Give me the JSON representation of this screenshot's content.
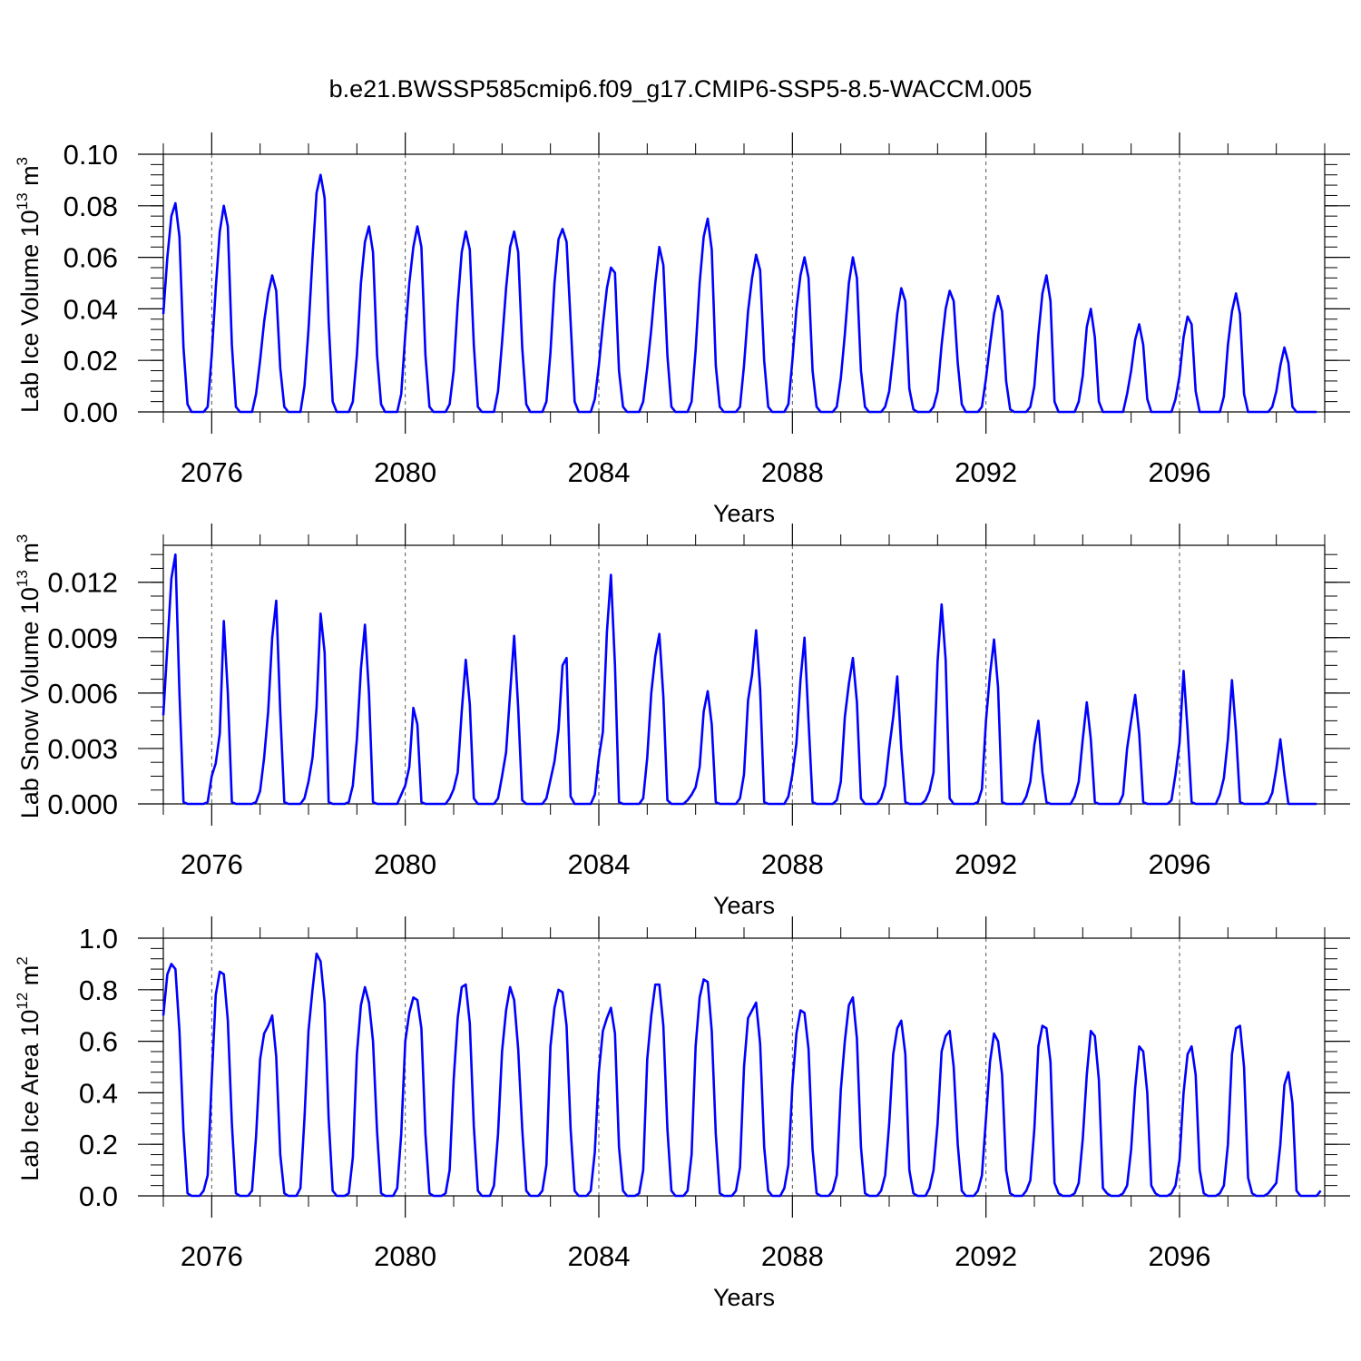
{
  "figure_title": "b.e21.BWSSP585cmip6.f09_g17.CMIP6-SSP5-8.5-WACCM.005",
  "line_color": "#0000ff",
  "chart_data": [
    {
      "type": "line",
      "title": "b.e21.BWSSP585cmip6.f09_g17.CMIP6-SSP5-8.5-WACCM.005",
      "xlabel": "Years",
      "ylabel_main": "Lab Ice Volume 10",
      "ylabel_exp": "13",
      "ylabel_unit": " m",
      "ylabel_unit_exp": "3",
      "xlim": [
        2075,
        2099
      ],
      "ylim": [
        0,
        0.1
      ],
      "yticks": [
        0.0,
        0.02,
        0.04,
        0.06,
        0.08,
        0.1
      ],
      "ytick_labels": [
        "0.00",
        "0.02",
        "0.04",
        "0.06",
        "0.08",
        "0.10"
      ],
      "xticks": [
        2076,
        2080,
        2084,
        2088,
        2092,
        2096
      ],
      "xtick_labels": [
        "2076",
        "2080",
        "2084",
        "2088",
        "2092",
        "2096"
      ],
      "grid": "dashed vertical lines at labeled years",
      "time_resolution": "monthly, starting January 2075",
      "series": [
        {
          "name": "Lab Ice Volume",
          "values": [
            0.038,
            0.06,
            0.076,
            0.081,
            0.068,
            0.025,
            0.003,
            0.0,
            0.0,
            0.0,
            0.0,
            0.002,
            0.022,
            0.048,
            0.07,
            0.08,
            0.072,
            0.026,
            0.002,
            0.0,
            0.0,
            0.0,
            0.0,
            0.007,
            0.02,
            0.035,
            0.046,
            0.053,
            0.047,
            0.017,
            0.002,
            0.0,
            0.0,
            0.0,
            0.0,
            0.01,
            0.032,
            0.06,
            0.085,
            0.092,
            0.083,
            0.035,
            0.004,
            0.0,
            0.0,
            0.0,
            0.0,
            0.004,
            0.022,
            0.05,
            0.066,
            0.072,
            0.062,
            0.022,
            0.003,
            0.0,
            0.0,
            0.0,
            0.0,
            0.007,
            0.03,
            0.05,
            0.064,
            0.072,
            0.064,
            0.022,
            0.002,
            0.0,
            0.0,
            0.0,
            0.0,
            0.003,
            0.016,
            0.042,
            0.062,
            0.07,
            0.063,
            0.026,
            0.002,
            0.0,
            0.0,
            0.0,
            0.0,
            0.008,
            0.027,
            0.048,
            0.064,
            0.07,
            0.062,
            0.025,
            0.003,
            0.0,
            0.0,
            0.0,
            0.0,
            0.004,
            0.023,
            0.05,
            0.067,
            0.071,
            0.066,
            0.035,
            0.004,
            0.0,
            0.0,
            0.0,
            0.0,
            0.005,
            0.018,
            0.034,
            0.048,
            0.056,
            0.054,
            0.016,
            0.002,
            0.0,
            0.0,
            0.0,
            0.0,
            0.004,
            0.017,
            0.032,
            0.05,
            0.064,
            0.057,
            0.022,
            0.002,
            0.0,
            0.0,
            0.0,
            0.0,
            0.004,
            0.024,
            0.05,
            0.068,
            0.075,
            0.063,
            0.018,
            0.002,
            0.0,
            0.0,
            0.0,
            0.0,
            0.002,
            0.018,
            0.039,
            0.052,
            0.061,
            0.055,
            0.02,
            0.002,
            0.0,
            0.0,
            0.0,
            0.0,
            0.003,
            0.02,
            0.04,
            0.053,
            0.06,
            0.052,
            0.016,
            0.002,
            0.0,
            0.0,
            0.0,
            0.0,
            0.002,
            0.013,
            0.03,
            0.05,
            0.06,
            0.052,
            0.016,
            0.002,
            0.0,
            0.0,
            0.0,
            0.0,
            0.002,
            0.008,
            0.022,
            0.038,
            0.048,
            0.043,
            0.009,
            0.001,
            0.0,
            0.0,
            0.0,
            0.0,
            0.002,
            0.008,
            0.026,
            0.04,
            0.047,
            0.043,
            0.019,
            0.003,
            0.0,
            0.0,
            0.0,
            0.0,
            0.002,
            0.013,
            0.026,
            0.038,
            0.045,
            0.039,
            0.012,
            0.001,
            0.0,
            0.0,
            0.0,
            0.0,
            0.002,
            0.01,
            0.03,
            0.046,
            0.053,
            0.043,
            0.004,
            0.0,
            0.0,
            0.0,
            0.0,
            0.0,
            0.004,
            0.014,
            0.033,
            0.04,
            0.029,
            0.004,
            0.0,
            0.0,
            0.0,
            0.0,
            0.0,
            0.0,
            0.007,
            0.016,
            0.028,
            0.034,
            0.026,
            0.005,
            0.0,
            0.0,
            0.0,
            0.0,
            0.0,
            0.0,
            0.005,
            0.014,
            0.029,
            0.037,
            0.034,
            0.008,
            0.0,
            0.0,
            0.0,
            0.0,
            0.0,
            0.0,
            0.006,
            0.026,
            0.039,
            0.046,
            0.038,
            0.007,
            0.0,
            0.0,
            0.0,
            0.0,
            0.0,
            0.0,
            0.002,
            0.008,
            0.018,
            0.025,
            0.019,
            0.002,
            0.0,
            0.0,
            0.0,
            0.0,
            0.0,
            0.0
          ]
        }
      ]
    },
    {
      "type": "line",
      "xlabel": "Years",
      "ylabel_main": "Lab Snow Volume 10",
      "ylabel_exp": "13",
      "ylabel_unit": " m",
      "ylabel_unit_exp": "3",
      "xlim": [
        2075,
        2099
      ],
      "ylim": [
        0,
        0.014
      ],
      "yticks": [
        0.0,
        0.003,
        0.006,
        0.009,
        0.012
      ],
      "ytick_labels": [
        "0.000",
        "0.003",
        "0.006",
        "0.009",
        "0.012"
      ],
      "xticks": [
        2076,
        2080,
        2084,
        2088,
        2092,
        2096
      ],
      "xtick_labels": [
        "2076",
        "2080",
        "2084",
        "2088",
        "2092",
        "2096"
      ],
      "grid": "dashed vertical lines at labeled years",
      "time_resolution": "monthly, starting January 2075",
      "series": [
        {
          "name": "Lab Snow Volume",
          "values": [
            0.0048,
            0.0085,
            0.0122,
            0.0135,
            0.006,
            0.0001,
            0.0,
            0.0,
            0.0,
            0.0,
            0.0,
            0.0001,
            0.0015,
            0.0022,
            0.0038,
            0.0099,
            0.006,
            0.0001,
            0.0,
            0.0,
            0.0,
            0.0,
            0.0,
            0.0001,
            0.0007,
            0.0025,
            0.005,
            0.009,
            0.011,
            0.005,
            0.0001,
            0.0,
            0.0,
            0.0,
            0.0,
            0.0003,
            0.0012,
            0.0025,
            0.0052,
            0.0103,
            0.0082,
            0.0001,
            0.0,
            0.0,
            0.0,
            0.0,
            0.0001,
            0.001,
            0.0035,
            0.0073,
            0.0097,
            0.006,
            0.0001,
            0.0,
            0.0,
            0.0,
            0.0,
            0.0,
            0.0,
            0.0005,
            0.001,
            0.002,
            0.0052,
            0.0043,
            0.0001,
            0.0,
            0.0,
            0.0,
            0.0,
            0.0,
            0.0,
            0.0003,
            0.0008,
            0.0017,
            0.005,
            0.0078,
            0.0054,
            0.0003,
            0.0,
            0.0,
            0.0,
            0.0,
            0.0,
            0.0003,
            0.0015,
            0.0028,
            0.006,
            0.0091,
            0.0052,
            0.0002,
            0.0,
            0.0,
            0.0,
            0.0,
            0.0,
            0.0003,
            0.0013,
            0.0023,
            0.004,
            0.0075,
            0.0079,
            0.0004,
            0.0,
            0.0,
            0.0,
            0.0,
            0.0,
            0.0005,
            0.0025,
            0.0039,
            0.0093,
            0.0124,
            0.0075,
            0.0001,
            0.0,
            0.0,
            0.0,
            0.0,
            0.0,
            0.0003,
            0.0025,
            0.006,
            0.008,
            0.0092,
            0.0058,
            0.0002,
            0.0,
            0.0,
            0.0,
            0.0,
            0.0002,
            0.0005,
            0.0009,
            0.002,
            0.005,
            0.0061,
            0.0043,
            0.0001,
            0.0,
            0.0,
            0.0,
            0.0,
            0.0,
            0.0003,
            0.0016,
            0.0056,
            0.007,
            0.0094,
            0.0062,
            0.0001,
            0.0,
            0.0,
            0.0,
            0.0,
            0.0,
            0.0004,
            0.0016,
            0.0033,
            0.0067,
            0.009,
            0.0045,
            0.0001,
            0.0,
            0.0,
            0.0,
            0.0,
            0.0,
            0.0002,
            0.0012,
            0.0047,
            0.0065,
            0.0079,
            0.0055,
            0.0003,
            0.0,
            0.0,
            0.0,
            0.0,
            0.0003,
            0.001,
            0.003,
            0.0047,
            0.0069,
            0.003,
            0.0001,
            0.0,
            0.0,
            0.0,
            0.0,
            0.0002,
            0.0007,
            0.0017,
            0.0077,
            0.0108,
            0.0078,
            0.0003,
            0.0,
            0.0,
            0.0,
            0.0,
            0.0,
            0.0,
            0.0001,
            0.0008,
            0.0045,
            0.007,
            0.0089,
            0.0063,
            0.0001,
            0.0,
            0.0,
            0.0,
            0.0,
            0.0,
            0.0004,
            0.0012,
            0.0032,
            0.0045,
            0.0017,
            0.0001,
            0.0,
            0.0,
            0.0,
            0.0,
            0.0,
            0.0,
            0.0004,
            0.0012,
            0.0035,
            0.0055,
            0.0035,
            0.0001,
            0.0,
            0.0,
            0.0,
            0.0,
            0.0,
            0.0,
            0.0005,
            0.003,
            0.0045,
            0.0059,
            0.0038,
            0.0001,
            0.0,
            0.0,
            0.0,
            0.0,
            0.0,
            0.0,
            0.0002,
            0.0016,
            0.0033,
            0.0072,
            0.004,
            0.0001,
            0.0,
            0.0,
            0.0,
            0.0,
            0.0,
            0.0,
            0.0005,
            0.0014,
            0.0035,
            0.0067,
            0.0039,
            0.0001,
            0.0,
            0.0,
            0.0,
            0.0,
            0.0,
            0.0,
            0.0001,
            0.0006,
            0.0019,
            0.0035,
            0.0016,
            0.0,
            0.0,
            0.0,
            0.0,
            0.0,
            0.0,
            0.0,
            0.0
          ]
        }
      ]
    },
    {
      "type": "line",
      "xlabel": "Years",
      "ylabel_main": "Lab Ice Area 10",
      "ylabel_exp": "12",
      "ylabel_unit": " m",
      "ylabel_unit_exp": "2",
      "xlim": [
        2075,
        2099
      ],
      "ylim": [
        0,
        1.0
      ],
      "yticks": [
        0.0,
        0.2,
        0.4,
        0.6,
        0.8,
        1.0
      ],
      "ytick_labels": [
        "0.0",
        "0.2",
        "0.4",
        "0.6",
        "0.8",
        "1.0"
      ],
      "xticks": [
        2076,
        2080,
        2084,
        2088,
        2092,
        2096
      ],
      "xtick_labels": [
        "2076",
        "2080",
        "2084",
        "2088",
        "2092",
        "2096"
      ],
      "grid": "dashed vertical lines at labeled years",
      "time_resolution": "monthly, starting January 2075",
      "series": [
        {
          "name": "Lab Ice Area",
          "values": [
            0.7,
            0.86,
            0.9,
            0.88,
            0.64,
            0.25,
            0.01,
            0.0,
            0.0,
            0.0,
            0.02,
            0.08,
            0.45,
            0.78,
            0.87,
            0.86,
            0.68,
            0.28,
            0.01,
            0.0,
            0.0,
            0.0,
            0.02,
            0.23,
            0.53,
            0.63,
            0.66,
            0.7,
            0.54,
            0.16,
            0.01,
            0.0,
            0.0,
            0.0,
            0.03,
            0.3,
            0.64,
            0.8,
            0.94,
            0.91,
            0.75,
            0.3,
            0.02,
            0.0,
            0.0,
            0.0,
            0.01,
            0.15,
            0.55,
            0.74,
            0.81,
            0.75,
            0.6,
            0.25,
            0.01,
            0.0,
            0.0,
            0.0,
            0.03,
            0.24,
            0.6,
            0.71,
            0.77,
            0.76,
            0.65,
            0.24,
            0.01,
            0.0,
            0.0,
            0.0,
            0.01,
            0.1,
            0.45,
            0.69,
            0.81,
            0.82,
            0.67,
            0.27,
            0.02,
            0.0,
            0.0,
            0.0,
            0.04,
            0.24,
            0.56,
            0.72,
            0.81,
            0.76,
            0.57,
            0.26,
            0.02,
            0.0,
            0.0,
            0.0,
            0.02,
            0.12,
            0.58,
            0.73,
            0.8,
            0.79,
            0.66,
            0.26,
            0.02,
            0.0,
            0.0,
            0.0,
            0.02,
            0.17,
            0.48,
            0.64,
            0.69,
            0.73,
            0.63,
            0.19,
            0.02,
            0.0,
            0.0,
            0.0,
            0.01,
            0.1,
            0.53,
            0.7,
            0.82,
            0.82,
            0.66,
            0.26,
            0.02,
            0.0,
            0.0,
            0.0,
            0.02,
            0.16,
            0.58,
            0.77,
            0.84,
            0.83,
            0.64,
            0.24,
            0.01,
            0.0,
            0.0,
            0.0,
            0.02,
            0.11,
            0.5,
            0.69,
            0.72,
            0.75,
            0.59,
            0.19,
            0.02,
            0.0,
            0.0,
            0.0,
            0.03,
            0.12,
            0.43,
            0.63,
            0.72,
            0.71,
            0.57,
            0.18,
            0.01,
            0.0,
            0.0,
            0.0,
            0.02,
            0.08,
            0.41,
            0.6,
            0.74,
            0.77,
            0.61,
            0.19,
            0.01,
            0.0,
            0.0,
            0.0,
            0.02,
            0.08,
            0.28,
            0.55,
            0.65,
            0.68,
            0.55,
            0.1,
            0.01,
            0.0,
            0.0,
            0.0,
            0.03,
            0.1,
            0.28,
            0.56,
            0.62,
            0.64,
            0.5,
            0.2,
            0.02,
            0.0,
            0.0,
            0.0,
            0.02,
            0.08,
            0.3,
            0.52,
            0.63,
            0.6,
            0.47,
            0.1,
            0.01,
            0.0,
            0.0,
            0.0,
            0.02,
            0.06,
            0.26,
            0.58,
            0.66,
            0.65,
            0.52,
            0.05,
            0.01,
            0.0,
            0.0,
            0.0,
            0.01,
            0.05,
            0.22,
            0.47,
            0.64,
            0.62,
            0.45,
            0.03,
            0.01,
            0.0,
            0.0,
            0.0,
            0.01,
            0.04,
            0.18,
            0.42,
            0.58,
            0.56,
            0.4,
            0.04,
            0.01,
            0.0,
            0.0,
            0.0,
            0.01,
            0.04,
            0.14,
            0.4,
            0.55,
            0.58,
            0.47,
            0.1,
            0.01,
            0.0,
            0.0,
            0.0,
            0.01,
            0.04,
            0.2,
            0.55,
            0.65,
            0.66,
            0.5,
            0.07,
            0.01,
            0.0,
            0.0,
            0.0,
            0.01,
            0.03,
            0.05,
            0.2,
            0.43,
            0.48,
            0.36,
            0.02,
            0.0,
            0.0,
            0.0,
            0.0,
            0.0,
            0.02
          ]
        }
      ]
    }
  ]
}
